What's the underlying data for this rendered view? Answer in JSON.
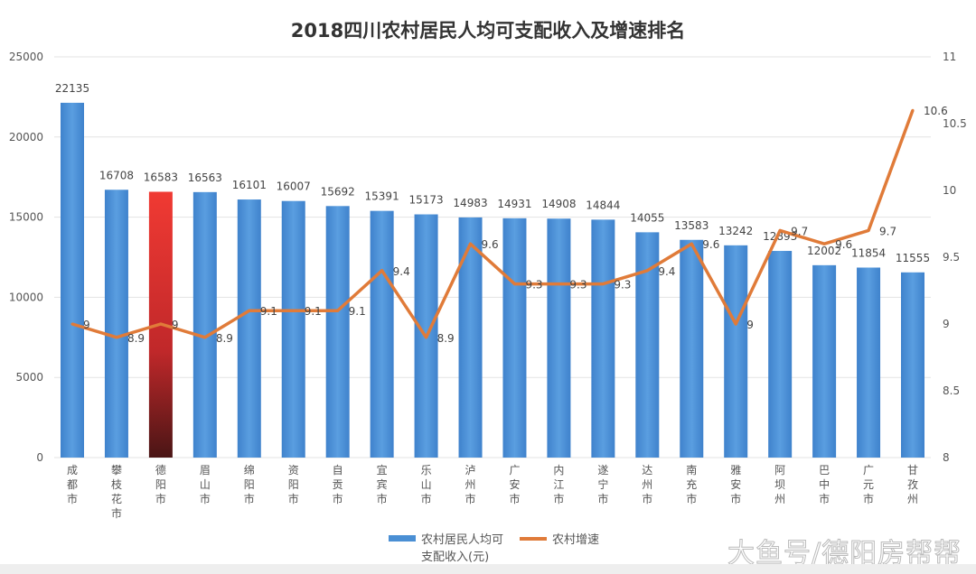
{
  "chart_data": {
    "type": "bar+line",
    "title": "2018四川农村居民人均可支配收入及增速排名",
    "categories": [
      "成都市",
      "攀枝花市",
      "德阳市",
      "眉山市",
      "绵阳市",
      "资阳市",
      "自贡市",
      "宜宾市",
      "乐山市",
      "泸州市",
      "广安市",
      "内江市",
      "遂宁市",
      "达州市",
      "南充市",
      "雅安市",
      "阿坝州",
      "巴中市",
      "广元市",
      "甘孜州"
    ],
    "series": [
      {
        "name": "农村居民人均可支配收入(元)",
        "type": "bar",
        "axis": "left",
        "color": "#4a8fd4",
        "highlight_index": 2,
        "highlight_color": "#e8322e",
        "values": [
          22135,
          16708,
          16583,
          16563,
          16101,
          16007,
          15692,
          15391,
          15173,
          14983,
          14931,
          14908,
          14844,
          14055,
          13583,
          13242,
          12893,
          12002,
          11854,
          11555
        ]
      },
      {
        "name": "农村增速",
        "type": "line",
        "axis": "right",
        "color": "#e07b39",
        "values": [
          9,
          8.9,
          9,
          8.9,
          9.1,
          9.1,
          9.1,
          9.4,
          8.9,
          9.6,
          9.3,
          9.3,
          9.3,
          9.4,
          9.6,
          9,
          9.7,
          9.6,
          9.7,
          10.6
        ]
      }
    ],
    "ylim_left": [
      0,
      25000
    ],
    "yticks_left": [
      0,
      5000,
      10000,
      15000,
      20000,
      25000
    ],
    "ylim_right": [
      8,
      11
    ],
    "yticks_right": [
      8,
      8.5,
      9,
      9.5,
      10,
      10.5,
      11
    ],
    "grid": true,
    "legend": "bottom"
  },
  "watermark": "大鱼号/德阳房帮帮"
}
